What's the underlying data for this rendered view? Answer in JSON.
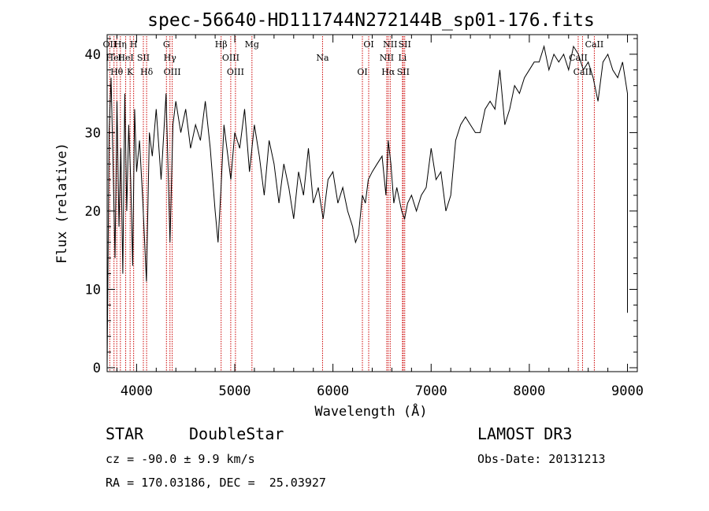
{
  "chart_data": {
    "type": "line",
    "title": "spec-56640-HD111744N272144B_sp01-176.fits",
    "xlabel": "Wavelength (Å)",
    "ylabel": "Flux (relative)",
    "xlim": [
      3700,
      9100
    ],
    "ylim": [
      -0.5,
      42.5
    ],
    "xticks": [
      4000,
      5000,
      6000,
      7000,
      8000,
      9000
    ],
    "yticks": [
      0,
      10,
      20,
      30,
      40
    ],
    "series": [
      {
        "name": "flux",
        "x": [
          3700,
          3720,
          3740,
          3760,
          3780,
          3800,
          3820,
          3840,
          3860,
          3880,
          3900,
          3920,
          3940,
          3960,
          3980,
          4000,
          4030,
          4060,
          4100,
          4130,
          4160,
          4200,
          4250,
          4300,
          4340,
          4370,
          4400,
          4450,
          4500,
          4550,
          4600,
          4650,
          4700,
          4750,
          4800,
          4830,
          4860,
          4890,
          4920,
          4960,
          5000,
          5050,
          5100,
          5150,
          5200,
          5250,
          5300,
          5350,
          5400,
          5450,
          5500,
          5550,
          5600,
          5650,
          5700,
          5750,
          5800,
          5850,
          5900,
          5950,
          6000,
          6050,
          6100,
          6150,
          6200,
          6230,
          6260,
          6300,
          6330,
          6360,
          6400,
          6450,
          6500,
          6540,
          6563,
          6590,
          6620,
          6650,
          6700,
          6730,
          6760,
          6800,
          6850,
          6900,
          6950,
          7000,
          7050,
          7100,
          7150,
          7200,
          7250,
          7300,
          7350,
          7400,
          7450,
          7500,
          7550,
          7600,
          7650,
          7700,
          7750,
          7800,
          7850,
          7900,
          7950,
          8000,
          8050,
          8100,
          8150,
          8200,
          8250,
          8300,
          8350,
          8400,
          8450,
          8500,
          8550,
          8600,
          8650,
          8700,
          8750,
          8800,
          8850,
          8900,
          8950,
          9000,
          9000
        ],
        "y": [
          0,
          30,
          37,
          26,
          14,
          34,
          18,
          28,
          12,
          35,
          20,
          31,
          24,
          13,
          33,
          25,
          29,
          22,
          11,
          30,
          27,
          33,
          24,
          35,
          16,
          31,
          34,
          30,
          33,
          28,
          31,
          29,
          34,
          28,
          20,
          16,
          23,
          31,
          28,
          24,
          30,
          28,
          33,
          25,
          31,
          27,
          22,
          29,
          26,
          21,
          26,
          23,
          19,
          25,
          22,
          28,
          21,
          23,
          19,
          24,
          25,
          21,
          23,
          20,
          18,
          16,
          17,
          22,
          21,
          24,
          25,
          26,
          27,
          22,
          29,
          26,
          21,
          23,
          20,
          19,
          21,
          22,
          20,
          22,
          23,
          28,
          24,
          25,
          20,
          22,
          29,
          31,
          32,
          31,
          30,
          30,
          33,
          34,
          33,
          38,
          31,
          33,
          36,
          35,
          37,
          38,
          39,
          39,
          41,
          38,
          40,
          39,
          40,
          38,
          41,
          40,
          38,
          39,
          37,
          34,
          39,
          40,
          38,
          37,
          39,
          35,
          7
        ]
      }
    ],
    "line_markers": [
      {
        "wave": 3727,
        "label": "OII"
      },
      {
        "wave": 3770,
        "label": "HeI"
      },
      {
        "wave": 3798,
        "label": "Hθ"
      },
      {
        "wave": 3835,
        "label": "Hη"
      },
      {
        "wave": 3889,
        "label": "HeI"
      },
      {
        "wave": 3934,
        "label": "K"
      },
      {
        "wave": 3970,
        "label": "H"
      },
      {
        "wave": 4069,
        "label": "SII"
      },
      {
        "wave": 4102,
        "label": "Hδ"
      },
      {
        "wave": 4304,
        "label": "G"
      },
      {
        "wave": 4340,
        "label": "Hγ"
      },
      {
        "wave": 4363,
        "label": "OIII"
      },
      {
        "wave": 4861,
        "label": "Hβ"
      },
      {
        "wave": 4959,
        "label": "OIII"
      },
      {
        "wave": 5007,
        "label": "OIII"
      },
      {
        "wave": 5175,
        "label": "Mg"
      },
      {
        "wave": 5894,
        "label": "Na"
      },
      {
        "wave": 6300,
        "label": "OI"
      },
      {
        "wave": 6364,
        "label": "OI"
      },
      {
        "wave": 6548,
        "label": "NII"
      },
      {
        "wave": 6563,
        "label": "Hα"
      },
      {
        "wave": 6583,
        "label": "NII"
      },
      {
        "wave": 6708,
        "label": "Li"
      },
      {
        "wave": 6716,
        "label": "SII"
      },
      {
        "wave": 6731,
        "label": "SII"
      },
      {
        "wave": 8498,
        "label": "CaII"
      },
      {
        "wave": 8542,
        "label": "CaII"
      },
      {
        "wave": 8662,
        "label": "CaII"
      }
    ]
  },
  "info": {
    "object_class": "STAR",
    "subclass": "DoubleStar",
    "survey": "LAMOST DR3",
    "cz": "cz = -90.0 ± 9.9 km/s",
    "obs_date": "Obs-Date: 20131213",
    "coords": "RA = 170.03186, DEC =  25.03927"
  },
  "colors": {
    "spectrum": "#000000",
    "marker_line": "#cc0000"
  }
}
